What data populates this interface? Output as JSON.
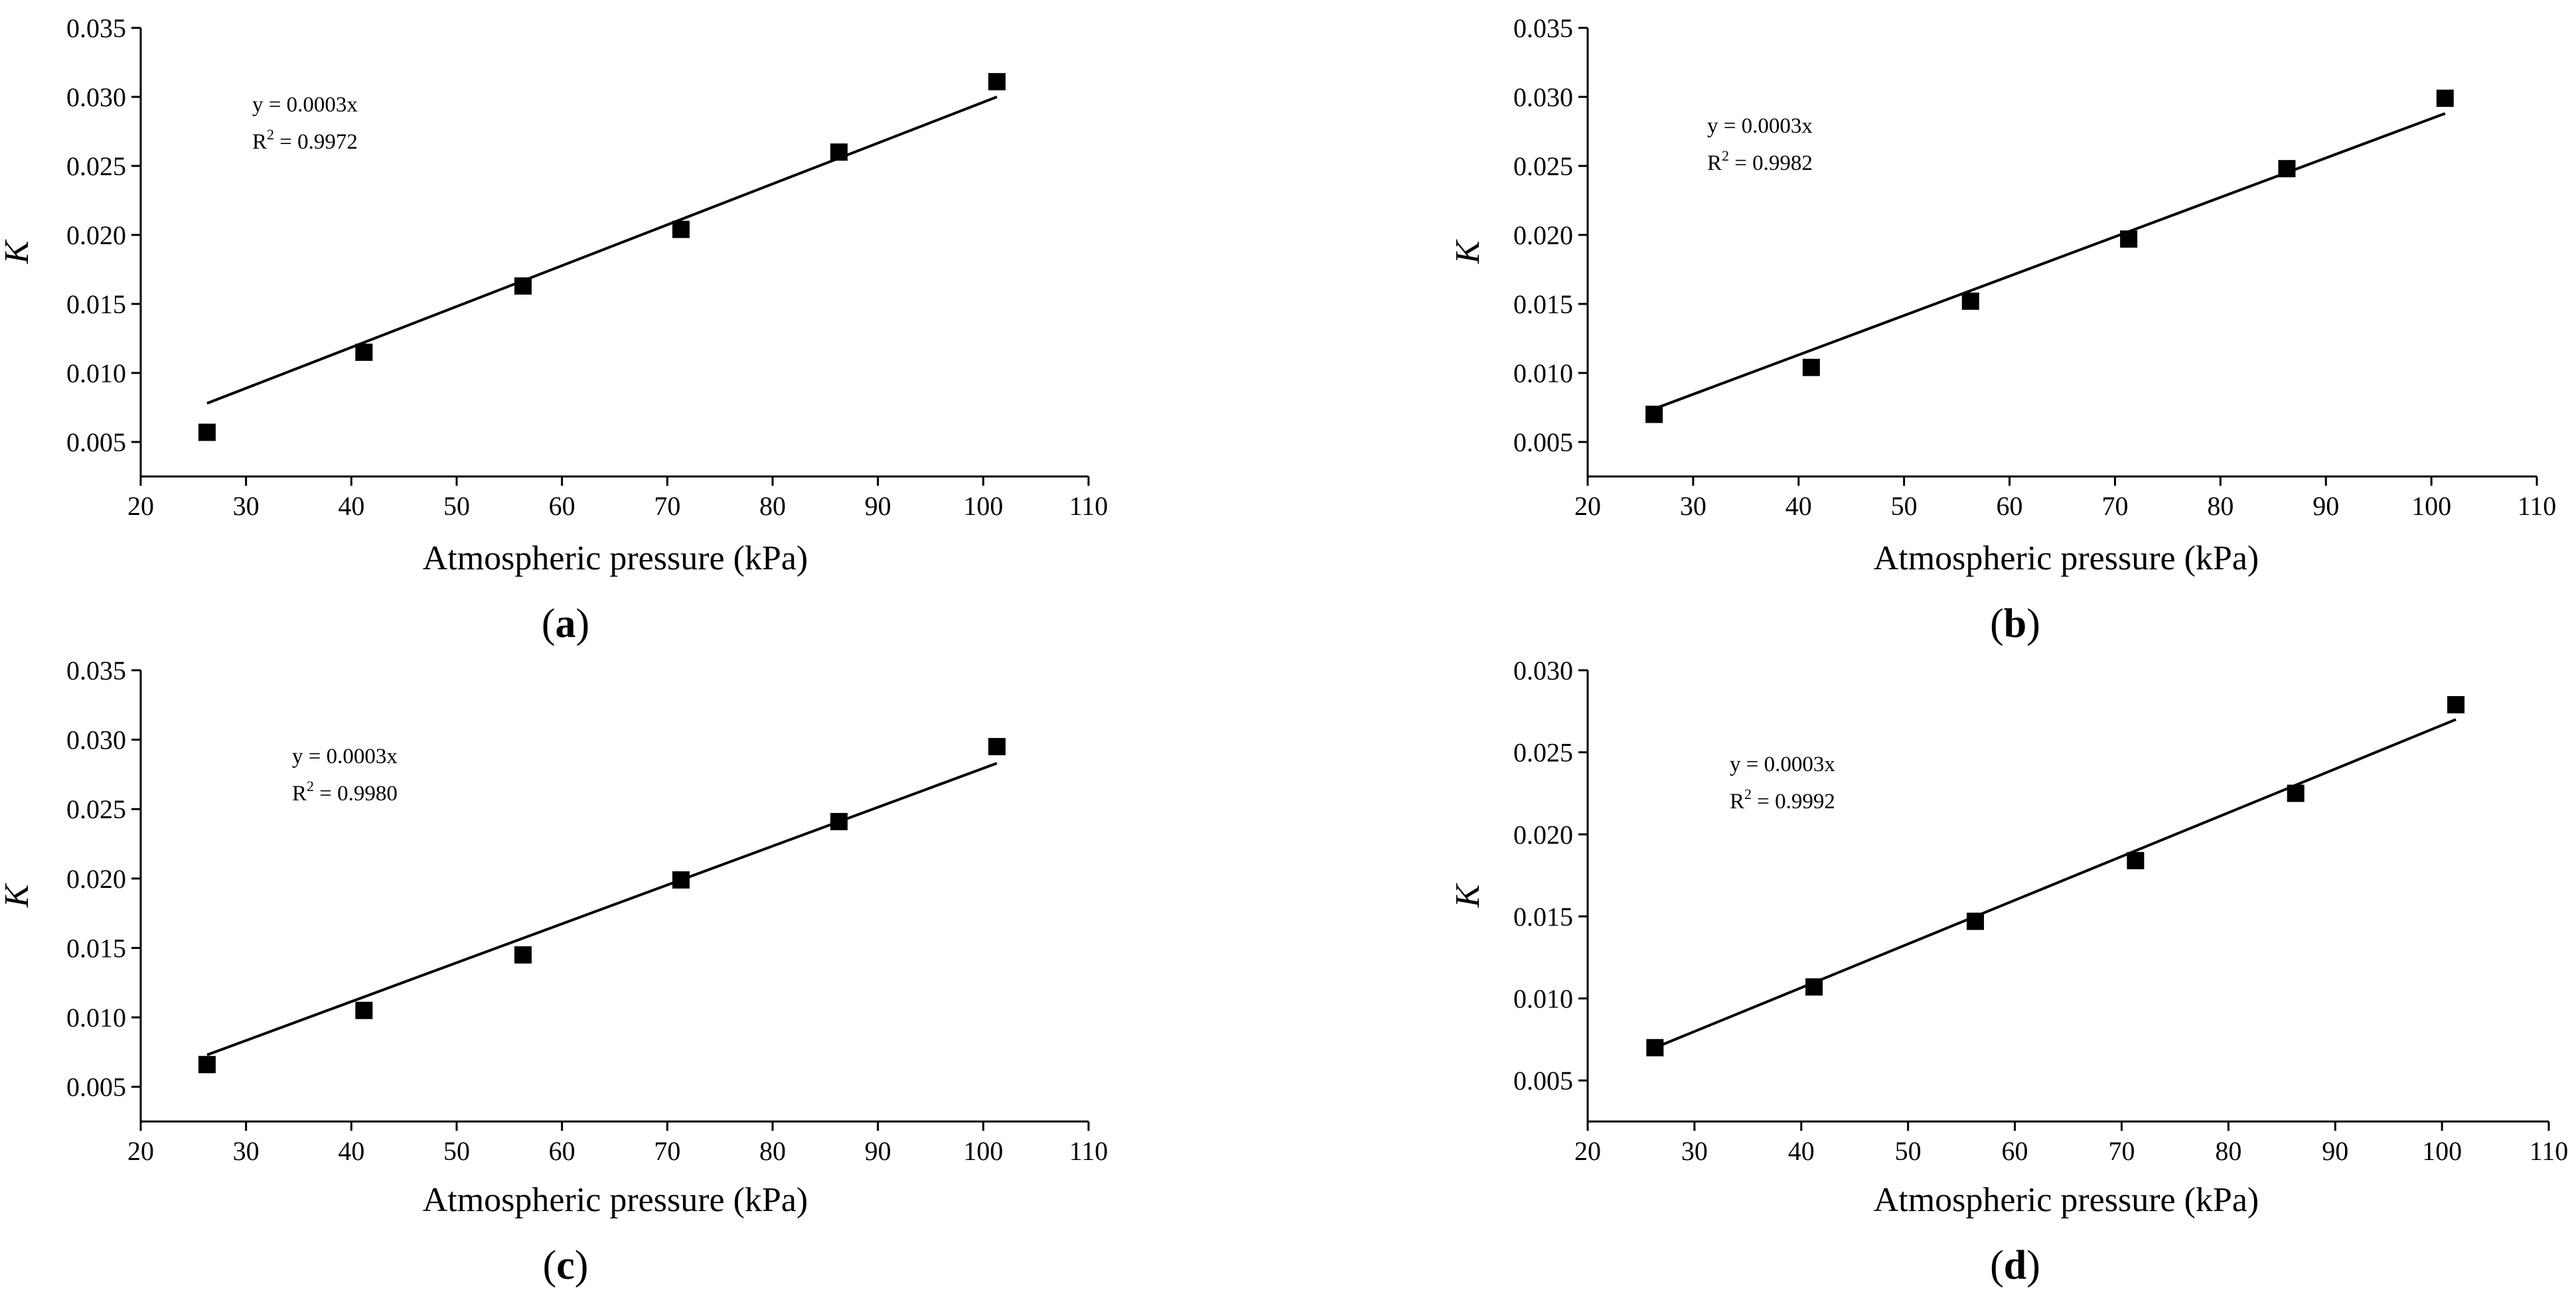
{
  "chart_data": [
    {
      "type": "scatter",
      "panel": "a",
      "xlabel": "Atmospheric pressure (kPa)",
      "ylabel": "K",
      "xlim": [
        20,
        110
      ],
      "ylim": [
        0.0025,
        0.035
      ],
      "xticks": [
        20,
        30,
        40,
        50,
        60,
        70,
        80,
        90,
        100,
        110
      ],
      "yticks": [
        0.005,
        0.01,
        0.015,
        0.02,
        0.025,
        0.03,
        0.035
      ],
      "points": {
        "x": [
          26.3,
          41.2,
          56.3,
          71.3,
          86.3,
          101.3
        ],
        "y": [
          0.0057,
          0.0115,
          0.0163,
          0.0204,
          0.026,
          0.0311
        ]
      },
      "fit": {
        "x": [
          26.3,
          101.3
        ],
        "y": [
          0.0078,
          0.03
        ]
      },
      "equation": "y = 0.0003x",
      "r2_prefix": "R",
      "r2_value": " = 0.9972"
    },
    {
      "type": "scatter",
      "panel": "b",
      "xlabel": "Atmospheric pressure (kPa)",
      "ylabel": "K",
      "xlim": [
        20,
        110
      ],
      "ylim": [
        0.0025,
        0.035
      ],
      "xticks": [
        20,
        30,
        40,
        50,
        60,
        70,
        80,
        90,
        100,
        110
      ],
      "yticks": [
        0.005,
        0.01,
        0.015,
        0.02,
        0.025,
        0.03,
        0.035
      ],
      "points": {
        "x": [
          26.3,
          41.2,
          56.3,
          71.3,
          86.3,
          101.3
        ],
        "y": [
          0.007,
          0.0104,
          0.0152,
          0.0197,
          0.0248,
          0.0299
        ]
      },
      "fit": {
        "x": [
          26.3,
          101.3
        ],
        "y": [
          0.0074,
          0.0288
        ]
      },
      "equation": "y = 0.0003x",
      "r2_prefix": "R",
      "r2_value": " = 0.9982"
    },
    {
      "type": "scatter",
      "panel": "c",
      "xlabel": "Atmospheric pressure (kPa)",
      "ylabel": "K",
      "xlim": [
        20,
        110
      ],
      "ylim": [
        0.0025,
        0.035
      ],
      "xticks": [
        20,
        30,
        40,
        50,
        60,
        70,
        80,
        90,
        100,
        110
      ],
      "yticks": [
        0.005,
        0.01,
        0.015,
        0.02,
        0.025,
        0.03,
        0.035
      ],
      "points": {
        "x": [
          26.3,
          41.2,
          56.3,
          71.3,
          86.3,
          101.3
        ],
        "y": [
          0.0066,
          0.0105,
          0.0145,
          0.0199,
          0.0241,
          0.0295
        ]
      },
      "fit": {
        "x": [
          26.3,
          101.3
        ],
        "y": [
          0.0073,
          0.0283
        ]
      },
      "equation": "y = 0.0003x",
      "r2_prefix": "R",
      "r2_value": " = 0.9980"
    },
    {
      "type": "scatter",
      "panel": "d",
      "xlabel": "Atmospheric pressure (kPa)",
      "ylabel": "K",
      "xlim": [
        20,
        110
      ],
      "ylim": [
        0.0025,
        0.03
      ],
      "xticks": [
        20,
        30,
        40,
        50,
        60,
        70,
        80,
        90,
        100,
        110
      ],
      "yticks": [
        0.005,
        0.01,
        0.015,
        0.02,
        0.025,
        0.03
      ],
      "points": {
        "x": [
          26.3,
          41.2,
          56.3,
          71.3,
          86.3,
          101.3
        ],
        "y": [
          0.007,
          0.0107,
          0.0147,
          0.0184,
          0.0225,
          0.0279
        ]
      },
      "fit": {
        "x": [
          26.3,
          101.3
        ],
        "y": [
          0.007,
          0.027
        ]
      },
      "equation": "y = 0.0003x",
      "r2_prefix": "R",
      "r2_value": " = 0.9992"
    }
  ]
}
